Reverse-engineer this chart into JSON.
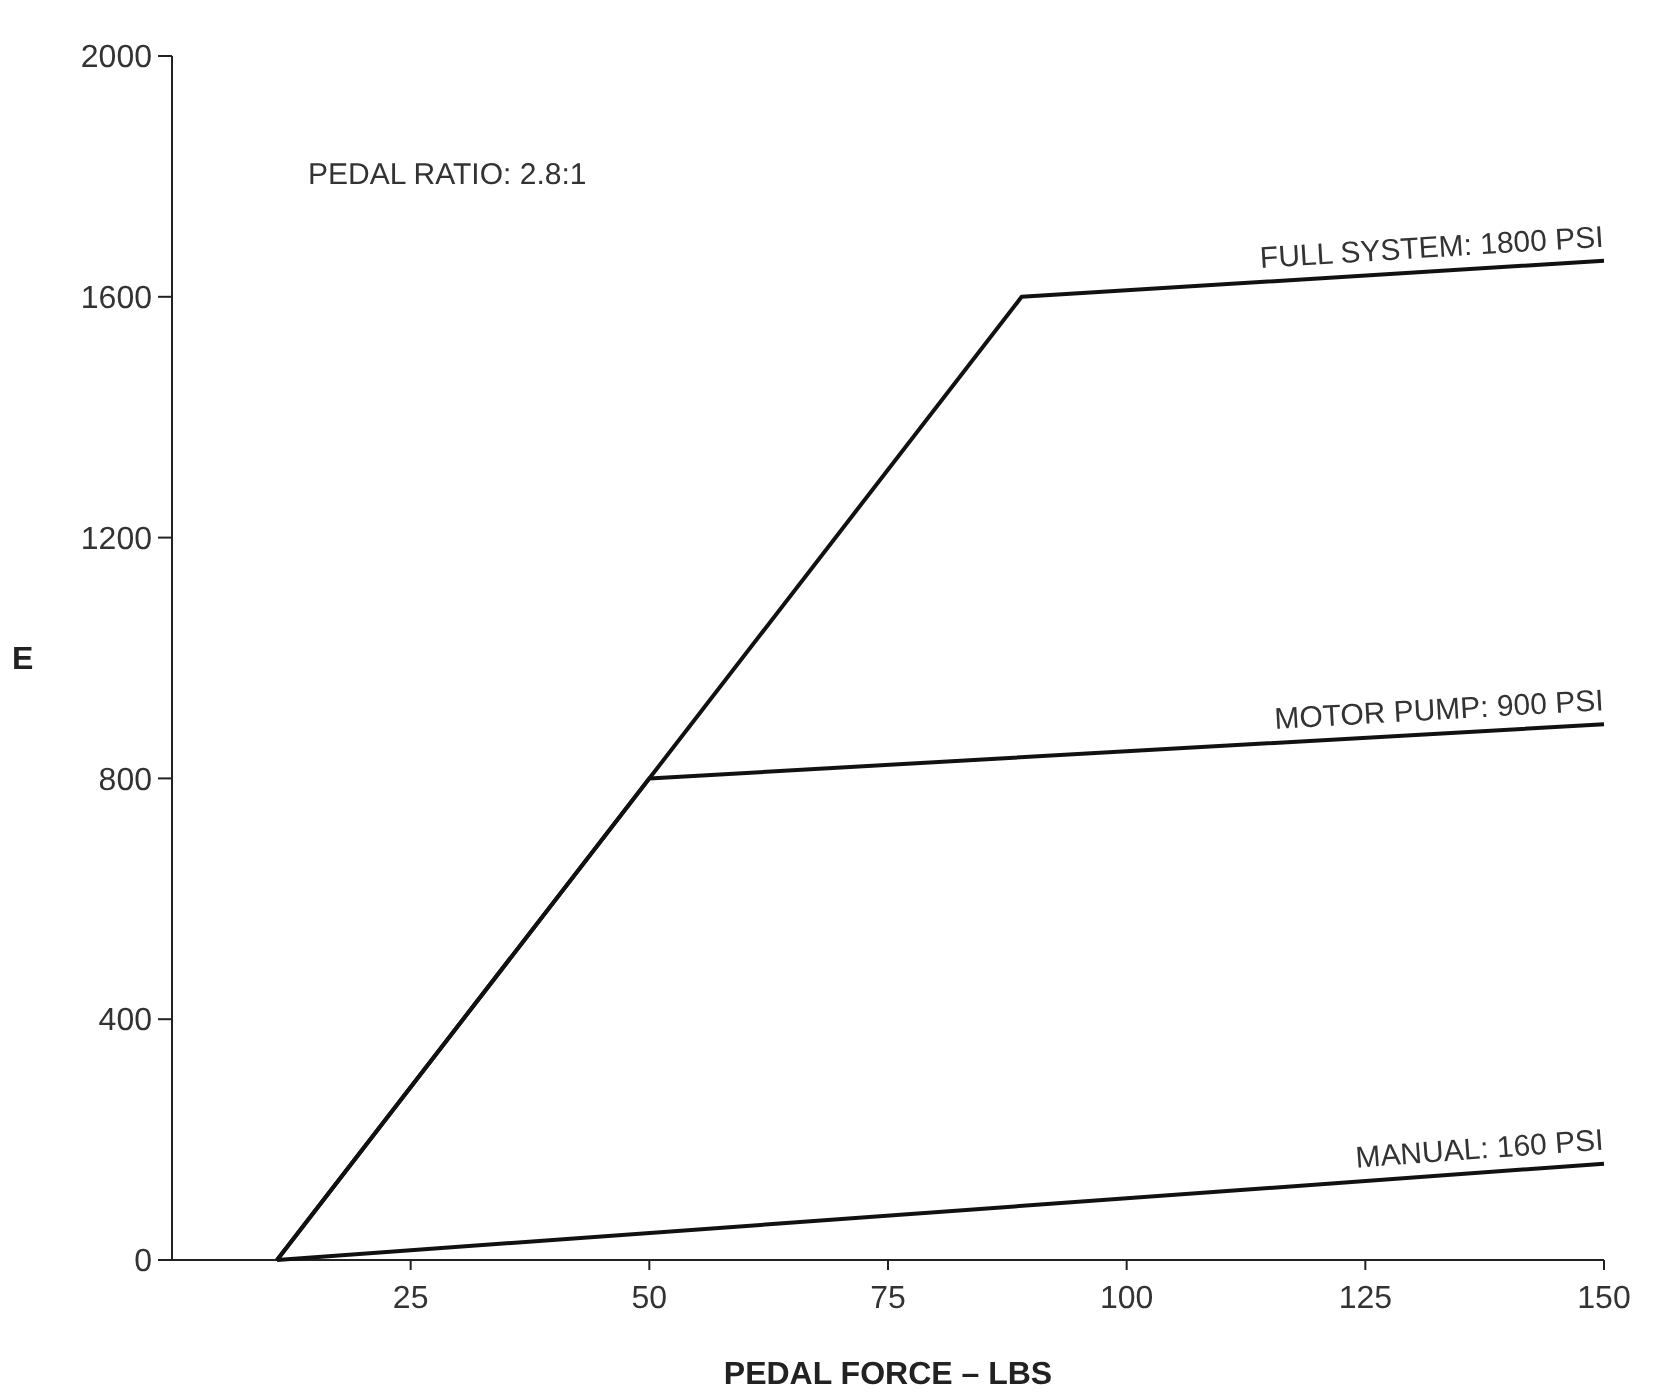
{
  "chart_data": {
    "type": "line",
    "xlabel": "PEDAL FORCE – LBS",
    "ylabel": "E",
    "annotations": [
      "PEDAL RATIO: 2.8:1"
    ],
    "xlim": [
      0,
      150
    ],
    "xticks": [
      25,
      50,
      75,
      100,
      125,
      150
    ],
    "ylim": [
      0,
      2000
    ],
    "yticks": [
      0,
      400,
      800,
      1200,
      1600,
      2000
    ],
    "grid": false,
    "marker": "none",
    "line_style": "solid",
    "series": [
      {
        "name": "FULL SYSTEM: 1800 PSI",
        "color": "#111111",
        "x": [
          11,
          89,
          150
        ],
        "values": [
          0,
          1600,
          1660
        ]
      },
      {
        "name": "MOTOR PUMP: 900 PSI",
        "color": "#111111",
        "x": [
          11,
          50,
          150
        ],
        "values": [
          0,
          800,
          890
        ]
      },
      {
        "name": "MANUAL: 160 PSI",
        "color": "#111111",
        "x": [
          11,
          150
        ],
        "values": [
          0,
          160
        ]
      }
    ]
  }
}
